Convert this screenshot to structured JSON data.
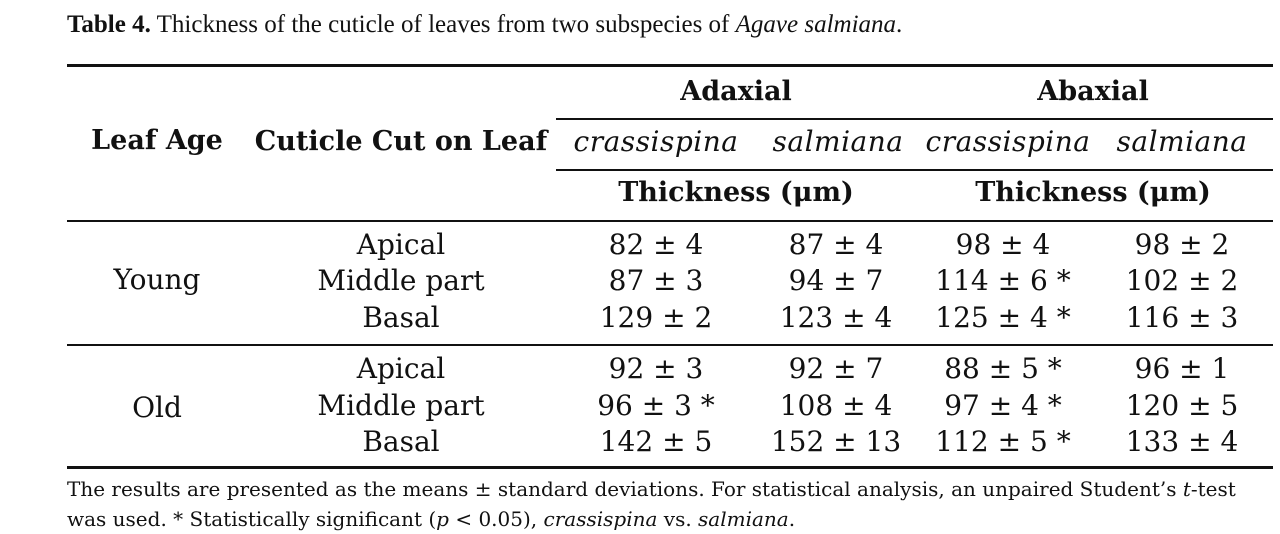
{
  "caption": {
    "label": "Table 4.",
    "text_before": "Thickness of the cuticle of leaves from two subspecies of",
    "species_italic": "Agave salmiana",
    "text_after": "."
  },
  "table": {
    "header": {
      "leaf_age": "Leaf Age",
      "cuticle_cut": "Cuticle Cut on Leaf",
      "adaxial": "Adaxial",
      "abaxial": "Abaxial",
      "sub1": "crassispina",
      "sub2": "salmiana",
      "sub3": "crassispina",
      "sub4": "salmiana",
      "thickness_adaxial": "Thickness (μm)",
      "thickness_abaxial": "Thickness (μm)"
    },
    "groups": [
      {
        "age": "Young",
        "rows": [
          {
            "cut": "Apical",
            "vals": [
              "82 ± 4",
              "87 ± 4",
              "98 ± 4",
              "98 ± 2"
            ]
          },
          {
            "cut": "Middle part",
            "vals": [
              "87 ± 3",
              "94 ± 7",
              "114 ± 6 *",
              "102 ± 2"
            ]
          },
          {
            "cut": "Basal",
            "vals": [
              "129 ± 2",
              "123 ± 4",
              "125 ± 4 *",
              "116 ± 3"
            ]
          }
        ]
      },
      {
        "age": "Old",
        "rows": [
          {
            "cut": "Apical",
            "vals": [
              "92 ± 3",
              "92 ± 7",
              "88 ± 5 *",
              "96 ± 1"
            ]
          },
          {
            "cut": "Middle part",
            "vals": [
              "96 ± 3 *",
              "108 ± 4",
              "97 ± 4 *",
              "120 ± 5"
            ]
          },
          {
            "cut": "Basal",
            "vals": [
              "142 ± 5",
              "152 ± 13",
              "112 ± 5 *",
              "133 ± 4"
            ]
          }
        ]
      }
    ]
  },
  "footnote": {
    "line1_a": "The results are presented as the means ± standard deviations. For statistical analysis, an unpaired Student’s ",
    "line1_t": "t",
    "line1_b": "-test",
    "line2_a": "was used. * Statistically significant (",
    "line2_p": "p",
    "line2_b": " < 0.05), ",
    "line2_c": "crassispina",
    "line2_d": " vs. ",
    "line2_e": "salmiana",
    "line2_f": "."
  }
}
